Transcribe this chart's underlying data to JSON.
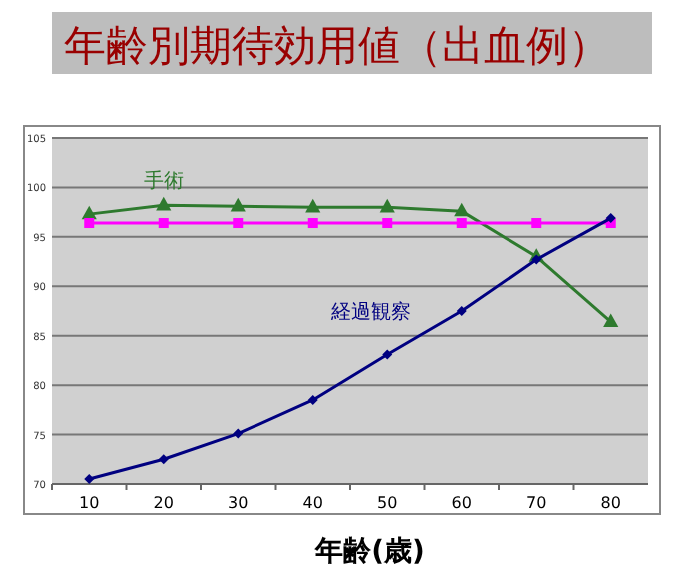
{
  "chart_data": {
    "type": "line",
    "title": "年齢別期待効用値（出血例）",
    "xlabel": "年齢(歳)",
    "categories": [
      "10",
      "20",
      "30",
      "40",
      "50",
      "60",
      "70",
      "80"
    ],
    "series": [
      {
        "name": "手術",
        "color": "#2e7a2e",
        "marker": "triangle",
        "values": [
          97.3,
          98.2,
          98.1,
          98.0,
          98.0,
          97.6,
          93.0,
          86.4
        ]
      },
      {
        "color": "#ff00ff",
        "marker": "square",
        "values": [
          96.4,
          96.4,
          96.4,
          96.4,
          96.4,
          96.4,
          96.4,
          96.4
        ]
      },
      {
        "name": "経過観察",
        "color": "#000080",
        "marker": "diamond",
        "values": [
          70.5,
          72.5,
          75.1,
          78.5,
          83.1,
          87.5,
          92.7,
          96.9
        ]
      }
    ],
    "ylim": [
      70,
      105
    ],
    "yticks": [
      70,
      75,
      80,
      85,
      90,
      95,
      100,
      105
    ],
    "grid": "y"
  }
}
